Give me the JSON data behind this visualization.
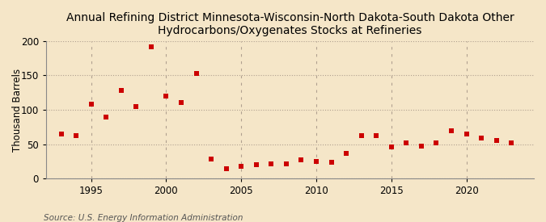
{
  "title_line1": "Annual Refining District Minnesota-Wisconsin-North Dakota-South Dakota Other",
  "title_line2": "Hydrocarbons/Oxygenates Stocks at Refineries",
  "ylabel": "Thousand Barrels",
  "source": "Source: U.S. Energy Information Administration",
  "background_color": "#f5e6c8",
  "marker_color": "#cc0000",
  "years": [
    1993,
    1994,
    1995,
    1996,
    1997,
    1998,
    1999,
    2000,
    2001,
    2002,
    2003,
    2004,
    2005,
    2006,
    2007,
    2008,
    2009,
    2010,
    2011,
    2012,
    2013,
    2014,
    2015,
    2016,
    2017,
    2018,
    2019,
    2020,
    2021,
    2022,
    2023
  ],
  "values": [
    65,
    62,
    108,
    90,
    128,
    105,
    191,
    120,
    110,
    153,
    29,
    15,
    18,
    20,
    22,
    22,
    27,
    25,
    24,
    37,
    62,
    62,
    46,
    52,
    47,
    52,
    70,
    65,
    59,
    55,
    52
  ],
  "ylim": [
    0,
    200
  ],
  "yticks": [
    0,
    50,
    100,
    150,
    200
  ],
  "xlim": [
    1992,
    2024.5
  ],
  "xticks": [
    1995,
    2000,
    2005,
    2010,
    2015,
    2020
  ],
  "grid_color": "#b0a090",
  "title_fontsize": 10,
  "axis_fontsize": 8.5,
  "source_fontsize": 7.5
}
